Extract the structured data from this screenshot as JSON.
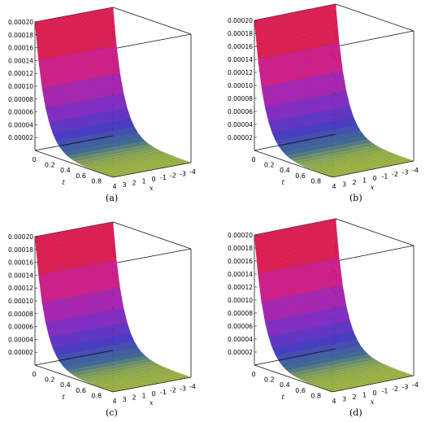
{
  "chart_data": [
    {
      "type": "surface3d",
      "panel_label": "(a)",
      "xlabel": "t",
      "ylabel": "x",
      "t_ticks": [
        "0",
        "0.2",
        "0.4",
        "0.6",
        "0.8"
      ],
      "x_ticks": [
        "4",
        "3",
        "2",
        "1",
        "0",
        "-1",
        "-2",
        "-3",
        "-4"
      ],
      "z_ticks": [
        "0.00002",
        "0.00004",
        "0.00006",
        "0.00008",
        "0.00010",
        "0.00012",
        "0.00014",
        "0.00016",
        "0.00018",
        "0.00020"
      ],
      "t_range": [
        0,
        1
      ],
      "x_range": [
        -4,
        4
      ],
      "z_range": [
        0,
        0.0002
      ],
      "peak_value": 0.0002
    },
    {
      "type": "surface3d",
      "panel_label": "(b)",
      "xlabel": "t",
      "ylabel": "x",
      "t_ticks": [
        "0",
        "0.2",
        "0.4",
        "0.6",
        "0.8"
      ],
      "x_ticks": [
        "4",
        "3",
        "2",
        "1",
        "0",
        "-1",
        "-2",
        "-3",
        "-4"
      ],
      "z_ticks": [
        "0.00002",
        "0.00004",
        "0.00006",
        "0.00008",
        "0.00010",
        "0.00012",
        "0.00014",
        "0.00016",
        "0.00018",
        "0.00020"
      ],
      "t_range": [
        0,
        1
      ],
      "x_range": [
        -4,
        4
      ],
      "z_range": [
        0,
        0.0002
      ],
      "peak_value": 0.0002
    },
    {
      "type": "surface3d",
      "panel_label": "(c)",
      "xlabel": "t",
      "ylabel": "x",
      "t_ticks": [
        "0",
        "0.2",
        "0.4",
        "0.6",
        "0.8"
      ],
      "x_ticks": [
        "4",
        "3",
        "2",
        "1",
        "0",
        "-1",
        "-2",
        "-3",
        "-4"
      ],
      "z_ticks": [
        "0.00002",
        "0.00004",
        "0.00006",
        "0.00008",
        "0.00010",
        "0.00012",
        "0.00014",
        "0.00016",
        "0.00018",
        "0.00020"
      ],
      "t_range": [
        0,
        1
      ],
      "x_range": [
        -4,
        4
      ],
      "z_range": [
        0,
        0.0002
      ],
      "peak_value": 0.0002
    },
    {
      "type": "surface3d",
      "panel_label": "(d)",
      "xlabel": "t",
      "ylabel": "x",
      "t_ticks": [
        "0",
        "0.2",
        "0.4",
        "0.6",
        "0.8"
      ],
      "x_ticks": [
        "4",
        "3",
        "2",
        "1",
        "0",
        "-1",
        "-2",
        "-3",
        "-4"
      ],
      "z_ticks": [
        "0.00002",
        "0.00004",
        "0.00006",
        "0.00008",
        "0.00010",
        "0.00012",
        "0.00014",
        "0.00016",
        "0.00018",
        "0.00020"
      ],
      "t_range": [
        0,
        1
      ],
      "x_range": [
        -4,
        4
      ],
      "z_range": [
        0,
        0.0002
      ],
      "peak_value": 0.0002
    }
  ]
}
